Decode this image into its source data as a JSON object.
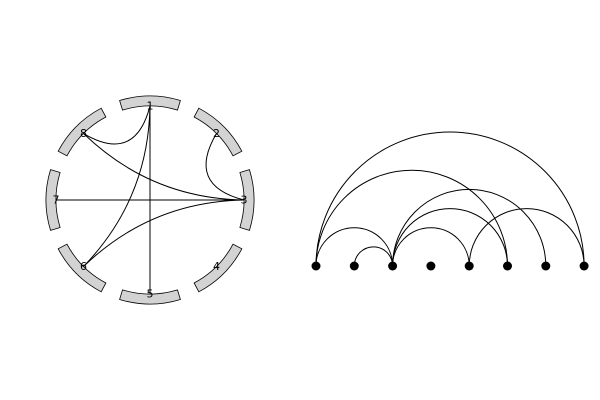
{
  "chord_diagram": {
    "nodes": [
      "1",
      "2",
      "3",
      "4",
      "5",
      "6",
      "7",
      "8"
    ],
    "edges": [
      [
        "1",
        "8"
      ],
      [
        "1",
        "6"
      ],
      [
        "1",
        "5"
      ],
      [
        "2",
        "3"
      ],
      [
        "3",
        "8"
      ],
      [
        "3",
        "6"
      ],
      [
        "3",
        "7"
      ]
    ]
  },
  "arc_diagram": {
    "node_count": 8,
    "arcs": [
      [
        1,
        3
      ],
      [
        1,
        6
      ],
      [
        1,
        8
      ],
      [
        2,
        3
      ],
      [
        3,
        5
      ],
      [
        3,
        6
      ],
      [
        3,
        7
      ],
      [
        5,
        8
      ]
    ]
  },
  "colors": {
    "segment_fill": "#d3d3d3",
    "stroke": "#000000"
  }
}
